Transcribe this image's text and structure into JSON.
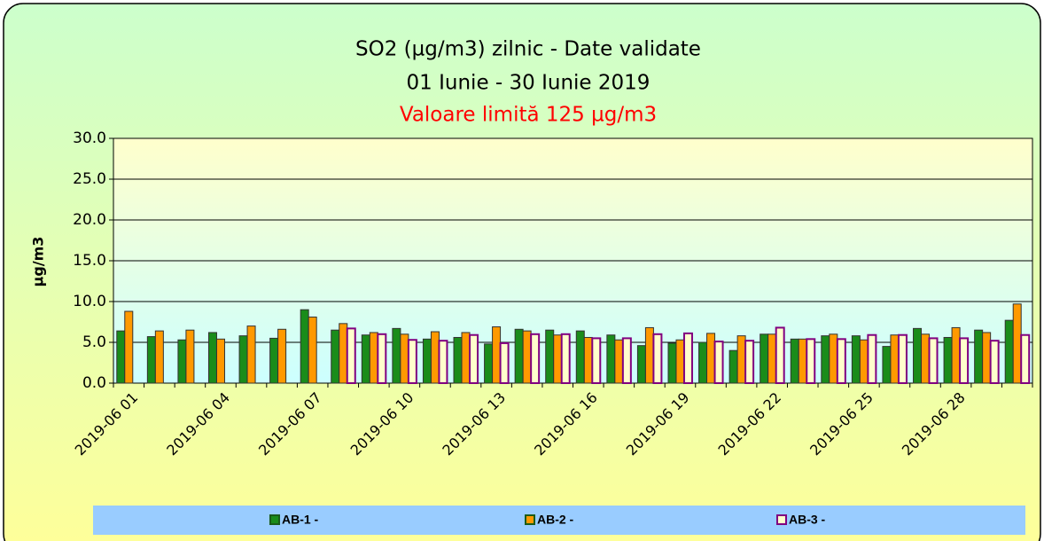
{
  "chart_data": {
    "type": "bar",
    "title": "SO2 (µg/m3) zilnic - Date validate",
    "subtitle": "01 Iunie - 30 Iunie 2019",
    "annotation": "Valoare limită 125 µg/m3",
    "ylabel": "µg/m3",
    "categories": [
      "2019-06 01",
      null,
      null,
      "2019-06 04",
      null,
      null,
      "2019-06 07",
      null,
      null,
      "2019-06 10",
      null,
      null,
      "2019-06 13",
      null,
      null,
      "2019-06 16",
      null,
      null,
      "2019-06 19",
      null,
      null,
      "2019-06 22",
      null,
      null,
      "2019-06 25",
      null,
      null,
      "2019-06 28",
      null,
      null
    ],
    "series": [
      {
        "name": "AB-1 -",
        "color": "#1a8c1a",
        "values": [
          6.4,
          5.7,
          5.3,
          6.2,
          5.8,
          5.5,
          9.0,
          6.5,
          5.9,
          6.7,
          5.4,
          5.6,
          4.8,
          6.6,
          6.5,
          6.4,
          5.9,
          4.6,
          4.9,
          5.0,
          4.0,
          6.0,
          5.4,
          5.8,
          5.8,
          4.5,
          6.7,
          5.6,
          6.5,
          7.7
        ]
      },
      {
        "name": "AB-2 -",
        "color": "#ff9900",
        "values": [
          8.8,
          6.4,
          6.5,
          5.4,
          7.0,
          6.6,
          8.1,
          7.3,
          6.2,
          6.0,
          6.3,
          6.2,
          6.9,
          6.4,
          5.9,
          5.6,
          5.3,
          6.8,
          5.3,
          6.1,
          5.8,
          6.0,
          5.4,
          6.0,
          5.3,
          5.9,
          6.0,
          6.8,
          6.2,
          9.7
        ]
      },
      {
        "name": "AB-3 -",
        "color": "#800080",
        "values": [
          null,
          null,
          null,
          null,
          null,
          null,
          null,
          6.7,
          6.0,
          5.3,
          5.2,
          5.9,
          4.9,
          6.0,
          6.0,
          5.5,
          5.5,
          6.0,
          6.1,
          5.1,
          5.2,
          6.8,
          5.4,
          5.4,
          5.9,
          5.9,
          5.5,
          5.5,
          5.2,
          5.9
        ]
      }
    ],
    "ylim": [
      0,
      30
    ],
    "yticks": [
      {
        "value": 0,
        "label": "0.0"
      },
      {
        "value": 5,
        "label": "5.0"
      },
      {
        "value": 10,
        "label": "10.0"
      },
      {
        "value": 15,
        "label": "15.0"
      },
      {
        "value": 20,
        "label": "20.0"
      },
      {
        "value": 25,
        "label": "25.0"
      },
      {
        "value": 30,
        "label": "30.0"
      }
    ],
    "grid": true,
    "legend": "bottom"
  }
}
